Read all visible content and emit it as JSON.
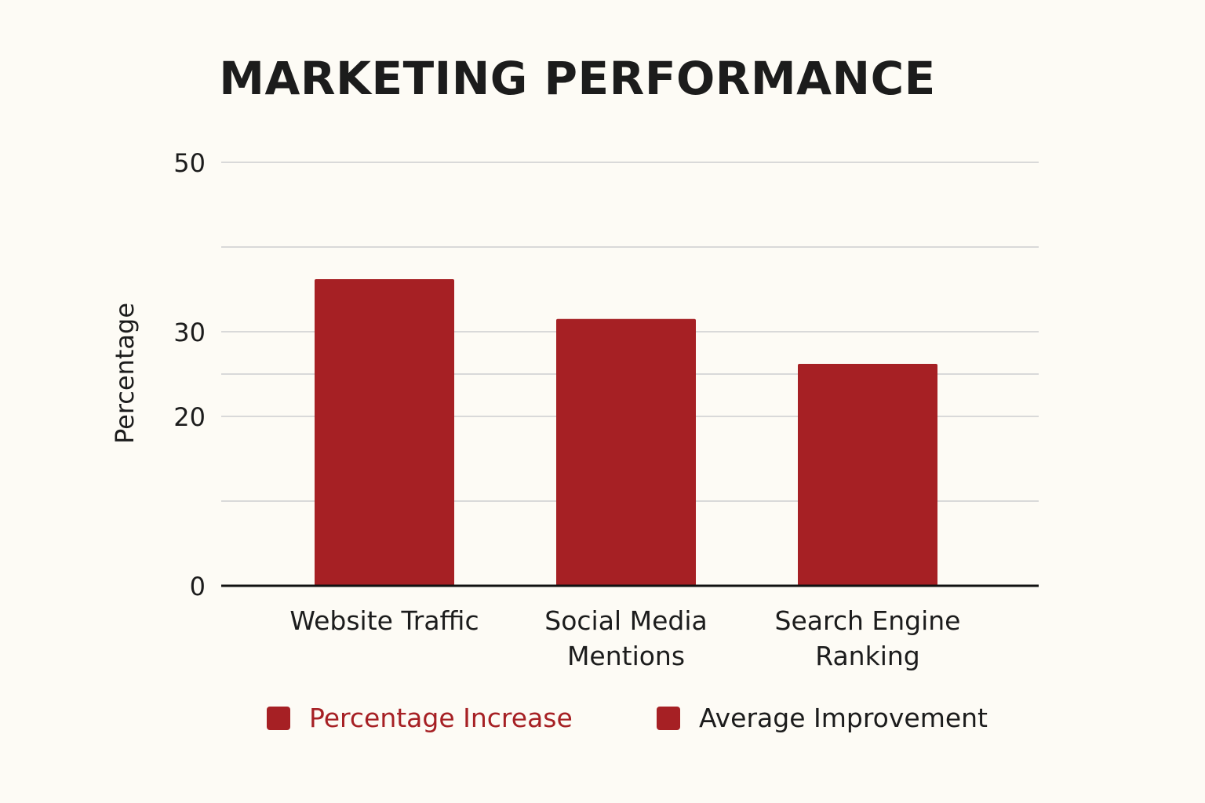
{
  "chart_data": {
    "type": "bar",
    "title": "MARKETING PERFORMANCE",
    "xlabel": "",
    "ylabel": "Percentage",
    "categories": [
      [
        "Website Traffic"
      ],
      [
        "Social Media",
        "Mentions"
      ],
      [
        "Search Engine",
        "Ranking"
      ]
    ],
    "values": [
      36.2,
      31.5,
      26.2
    ],
    "ylim": [
      0,
      50
    ],
    "yticks": [
      {
        "value": 0,
        "label": "0"
      },
      {
        "value": 10,
        "label": ""
      },
      {
        "value": 20,
        "label": "20"
      },
      {
        "value": 25,
        "label": ""
      },
      {
        "value": 30,
        "label": "30"
      },
      {
        "value": 40,
        "label": ""
      },
      {
        "value": 50,
        "label": "50"
      }
    ],
    "grid": true,
    "bar_color": "#a62024",
    "legend": {
      "placement": "bottom",
      "entries": [
        {
          "label": "Percentage Increase",
          "color": "#a62024",
          "text_color": "#a62024"
        },
        {
          "label": "Average Improvement",
          "color": "#a62024",
          "text_color": "#1c1c1c"
        }
      ]
    }
  }
}
